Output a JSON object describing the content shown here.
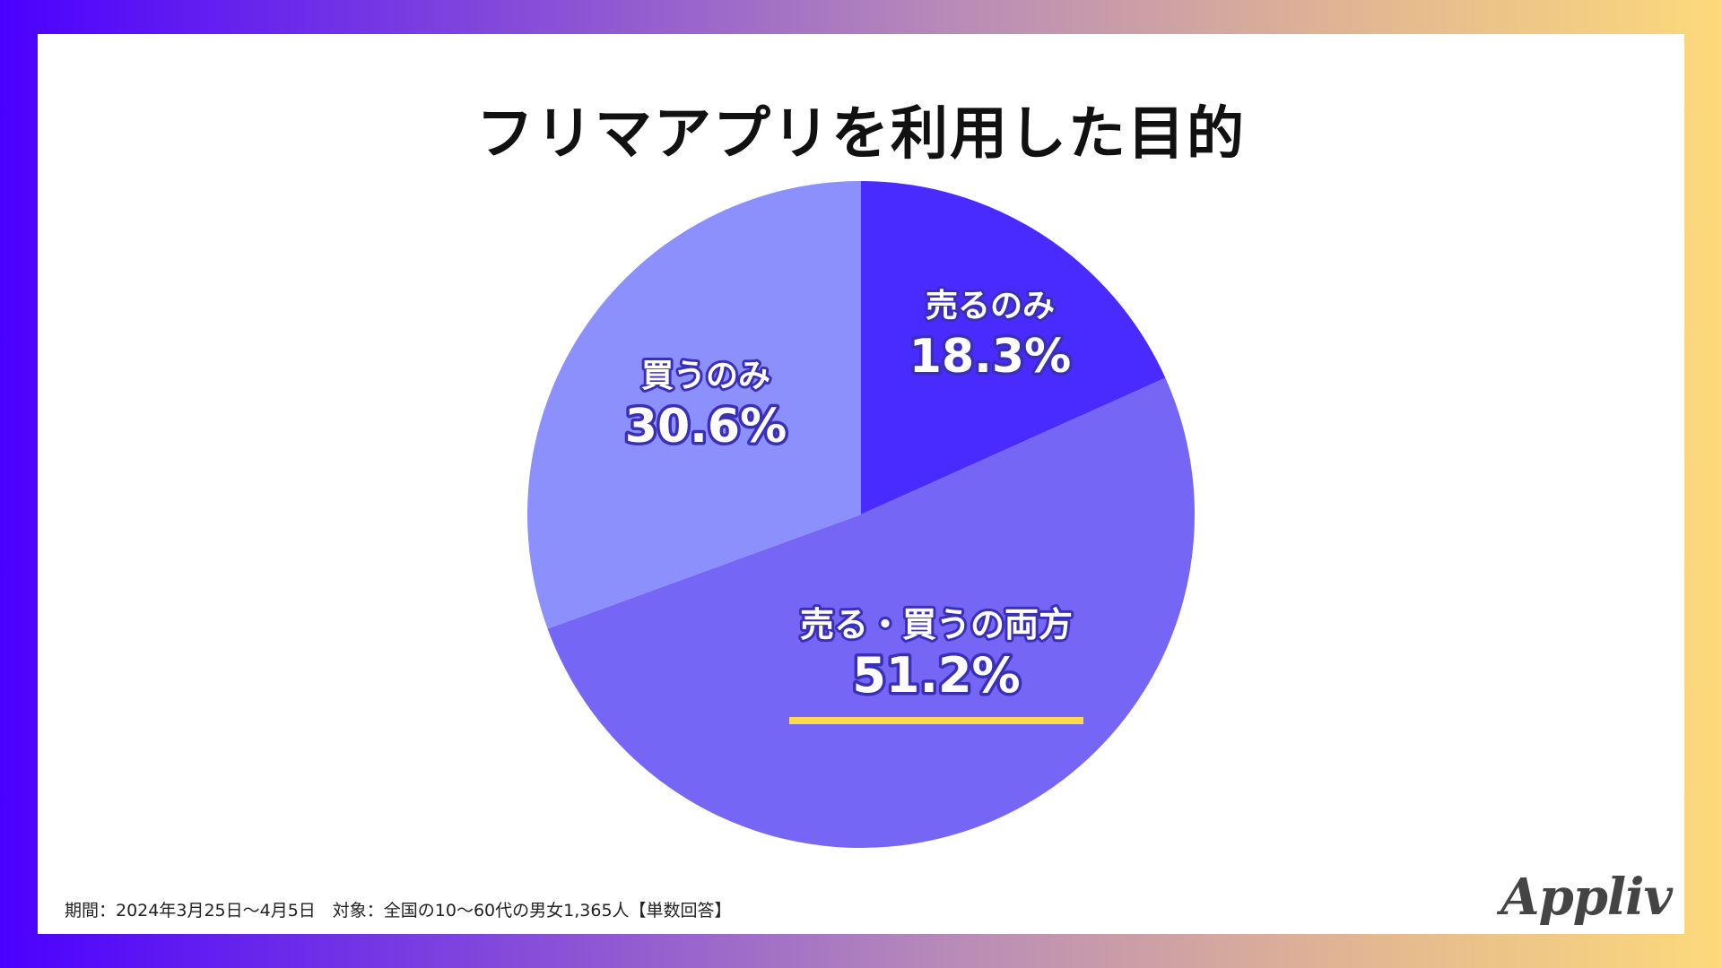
{
  "title": "フリマアプリを利用した目的",
  "footnote": "期間：2024年3月25日〜4月5日　対象：全国の10〜60代の男女1,365人【単数回答】",
  "logo": "Appliv",
  "colors": {
    "sell_only": "#4a2bff",
    "both": "#7566f5",
    "buy_only": "#8c90fd",
    "highlight": "#ffd84d"
  },
  "chart_data": {
    "type": "pie",
    "title": "フリマアプリを利用した目的",
    "start_angle_deg": 0,
    "direction": "clockwise",
    "slices": [
      {
        "label": "売るのみ",
        "value": 18.3,
        "value_text": "18.3%",
        "color": "#4a2bff"
      },
      {
        "label": "売る・買うの両方",
        "value": 51.2,
        "value_text": "51.2%",
        "color": "#7566f5",
        "highlighted": true
      },
      {
        "label": "買うのみ",
        "value": 30.6,
        "value_text": "30.6%",
        "color": "#8c90fd"
      }
    ]
  }
}
